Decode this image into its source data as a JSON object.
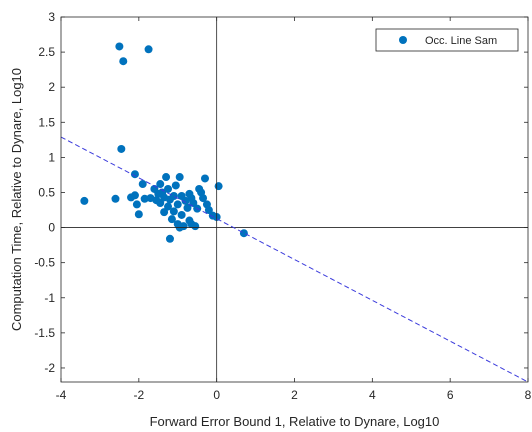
{
  "chart_data": {
    "type": "scatter",
    "xlabel": "Forward Error Bound 1, Relative to Dynare, Log10",
    "ylabel": "Computation Time, Relative to Dynare, Log10",
    "xlim": [
      -4,
      8
    ],
    "ylim": [
      -2.2,
      3
    ],
    "xticks": [
      -4,
      -2,
      0,
      2,
      4,
      6,
      8
    ],
    "yticks": [
      -2,
      -1.5,
      -1,
      -0.5,
      0,
      0.5,
      1,
      1.5,
      2,
      2.5,
      3
    ],
    "xtick_labels": [
      "-4",
      "-2",
      "0",
      "2",
      "4",
      "6",
      "8"
    ],
    "ytick_labels": [
      "-2",
      "-1.5",
      "-1",
      "-0.5",
      "0",
      "0.5",
      "1",
      "1.5",
      "2",
      "2.5",
      "3"
    ],
    "grid": false,
    "zero_lines": true,
    "legend_position": "top-right",
    "series": [
      {
        "name": "Occ. Line Sam",
        "color": "#0072bd",
        "points": [
          [
            -2.5,
            2.58
          ],
          [
            -2.4,
            2.37
          ],
          [
            -1.75,
            2.54
          ],
          [
            -2.45,
            1.12
          ],
          [
            -3.4,
            0.38
          ],
          [
            -2.6,
            0.41
          ],
          [
            -2.1,
            0.76
          ],
          [
            -2.1,
            0.46
          ],
          [
            -2.2,
            0.43
          ],
          [
            -2.05,
            0.33
          ],
          [
            -1.85,
            0.41
          ],
          [
            -1.9,
            0.62
          ],
          [
            -1.7,
            0.42
          ],
          [
            -2.0,
            0.19
          ],
          [
            -1.55,
            0.39
          ],
          [
            -1.5,
            0.48
          ],
          [
            -1.45,
            0.35
          ],
          [
            -1.4,
            0.5
          ],
          [
            -1.35,
            0.43
          ],
          [
            -1.3,
            0.72
          ],
          [
            -1.35,
            0.22
          ],
          [
            -1.25,
            0.55
          ],
          [
            -1.25,
            0.3
          ],
          [
            -1.2,
            0.4
          ],
          [
            -1.15,
            0.12
          ],
          [
            -1.1,
            0.45
          ],
          [
            -1.1,
            0.23
          ],
          [
            -1.05,
            0.6
          ],
          [
            -1.0,
            0.33
          ],
          [
            -1.0,
            0.05
          ],
          [
            -0.95,
            0.72
          ],
          [
            -0.9,
            0.45
          ],
          [
            -0.9,
            0.18
          ],
          [
            -0.85,
            0.02
          ],
          [
            -0.8,
            0.38
          ],
          [
            -0.75,
            0.28
          ],
          [
            -0.7,
            0.48
          ],
          [
            -0.7,
            0.1
          ],
          [
            -0.65,
            0.42
          ],
          [
            -0.6,
            0.35
          ],
          [
            -0.55,
            0.02
          ],
          [
            -0.5,
            0.27
          ],
          [
            -0.45,
            0.55
          ],
          [
            -0.4,
            0.5
          ],
          [
            -0.35,
            0.42
          ],
          [
            -0.3,
            0.7
          ],
          [
            -0.25,
            0.33
          ],
          [
            -0.2,
            0.25
          ],
          [
            -0.1,
            0.17
          ],
          [
            0.05,
            0.59
          ],
          [
            0.0,
            0.15
          ],
          [
            -1.2,
            -0.16
          ],
          [
            -0.65,
            0.05
          ],
          [
            -1.45,
            0.62
          ],
          [
            -1.6,
            0.55
          ],
          [
            -0.95,
            0.0
          ],
          [
            0.7,
            -0.08
          ]
        ]
      }
    ],
    "fit_line": {
      "style": "dashed",
      "color": "#3c3cdc",
      "x": [
        -4,
        8
      ],
      "y": [
        1.29,
        -2.2
      ]
    }
  }
}
